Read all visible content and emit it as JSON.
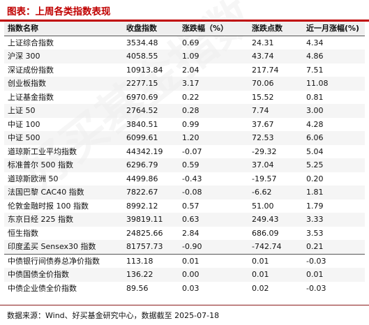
{
  "title": "图表：上周各类指数表现",
  "watermark": "好买基金指数",
  "table": {
    "headers": [
      "指数名称",
      "收盘指数",
      "涨跌幅（%）",
      "涨跌点数",
      "近一月涨幅(%)"
    ],
    "rows": [
      [
        "上证综合指数",
        "3534.48",
        "0.69",
        "24.31",
        "4.34"
      ],
      [
        "沪深 300",
        "4058.55",
        "1.09",
        "43.74",
        "4.86"
      ],
      [
        "深证成份指数",
        "10913.84",
        "2.04",
        "217.74",
        "7.51"
      ],
      [
        "创业板指数",
        "2277.15",
        "3.17",
        "70.06",
        "11.08"
      ],
      [
        "上证基金指数",
        "6970.69",
        "0.22",
        "15.52",
        "0.81"
      ],
      [
        "上证 50",
        "2764.52",
        "0.28",
        "7.74",
        "3.00"
      ],
      [
        "中证 100",
        "3840.51",
        "0.99",
        "37.67",
        "4.28"
      ],
      [
        "中证 500",
        "6099.61",
        "1.20",
        "72.53",
        "6.06"
      ],
      [
        "道琼斯工业平均指数",
        "44342.19",
        "-0.07",
        "-29.32",
        "5.04"
      ],
      [
        "标准普尔 500 指数",
        "6296.79",
        "0.59",
        "37.04",
        "5.25"
      ],
      [
        "道琼斯欧洲 50",
        "4499.86",
        "-0.43",
        "-19.57",
        "0.20"
      ],
      [
        "法国巴黎 CAC40 指数",
        "7822.67",
        "-0.08",
        "-6.62",
        "1.81"
      ],
      [
        "伦敦金融时报 100 指数",
        "8992.12",
        "0.57",
        "51.00",
        "1.79"
      ],
      [
        "东京日经 225 指数",
        "39819.11",
        "0.63",
        "249.43",
        "3.33"
      ],
      [
        "恒生指数",
        "24825.66",
        "2.84",
        "686.09",
        "3.53"
      ],
      [
        "印度孟买 Sensex30 指数",
        "81757.73",
        "-0.90",
        "-742.74",
        "0.21"
      ],
      [
        "中债银行间债券总净价指数",
        "113.18",
        "0.01",
        "0.01",
        "-0.03"
      ],
      [
        "中债国债全价指数",
        "136.22",
        "0.00",
        "0.01",
        "0.01"
      ],
      [
        "中债企业债全价指数",
        "89.56",
        "0.03",
        "0.02",
        "-0.03"
      ]
    ]
  },
  "source": "数据来源：Wind、好买基金研究中心，数据截至 2025-07-18",
  "colors": {
    "accent": "#c00000",
    "header_bg": "#efefef"
  }
}
